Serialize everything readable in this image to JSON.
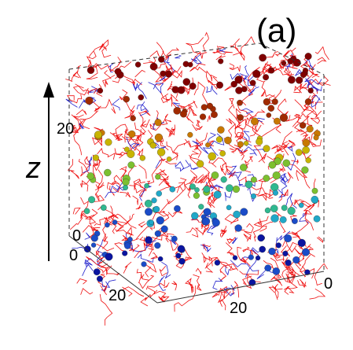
{
  "figure": {
    "panel_label": "(a)",
    "vertical_axis_label": "z",
    "ticks": {
      "z_upper": "20",
      "z_lower_a": "0",
      "z_lower_b": "0",
      "front_left": "20",
      "front_right": "20",
      "right_corner": "0"
    }
  },
  "colors": {
    "chains_primary": "#ee1111",
    "chains_secondary": "#2222cc",
    "bead_layers": [
      "#800000",
      "#a02a00",
      "#c87800",
      "#c8b400",
      "#7cc030",
      "#30b890",
      "#20a8c8",
      "#1a4cc8",
      "#0a14a0"
    ]
  }
}
